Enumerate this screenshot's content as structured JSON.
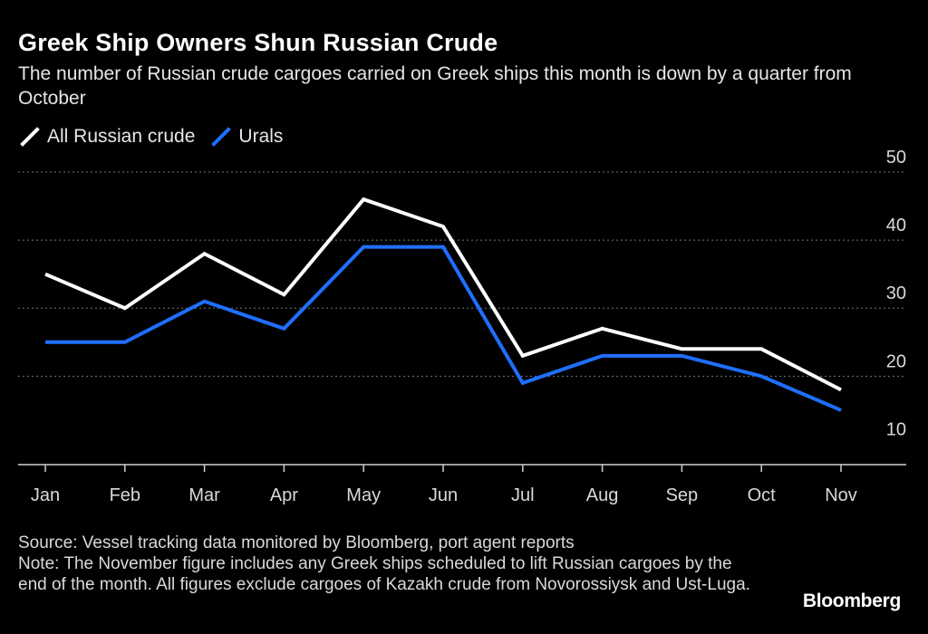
{
  "title": "Greek Ship Owners Shun Russian Crude",
  "subtitle": "The number of Russian crude cargoes carried on Greek ships this month is down by a quarter from October",
  "legend": [
    {
      "label": "All Russian crude",
      "color": "#ffffff"
    },
    {
      "label": "Urals",
      "color": "#1f6fff"
    }
  ],
  "footer": {
    "source": "Source: Vessel tracking data monitored by Bloomberg, port agent reports",
    "note": "Note: The November figure includes any Greek ships scheduled to lift Russian cargoes by the end of the month. All figures exclude cargoes of Kazakh crude from Novorossiysk and Ust-Luga."
  },
  "brand": "Bloomberg",
  "chart_data": {
    "type": "line",
    "categories": [
      "Jan",
      "Feb",
      "Mar",
      "Apr",
      "May",
      "Jun",
      "Jul",
      "Aug",
      "Sep",
      "Oct",
      "Nov"
    ],
    "series": [
      {
        "name": "All Russian crude",
        "color": "#ffffff",
        "values": [
          35,
          30,
          38,
          32,
          46,
          42,
          23,
          27,
          24,
          24,
          18
        ]
      },
      {
        "name": "Urals",
        "color": "#1f6fff",
        "values": [
          25,
          25,
          31,
          27,
          39,
          39,
          19,
          23,
          23,
          20,
          15
        ]
      }
    ],
    "yticks": [
      10,
      20,
      30,
      40,
      50
    ],
    "ylim": [
      7,
      52
    ],
    "y_axis_side": "right",
    "grid": "dotted-horizontal",
    "xlabel": "",
    "ylabel": ""
  }
}
